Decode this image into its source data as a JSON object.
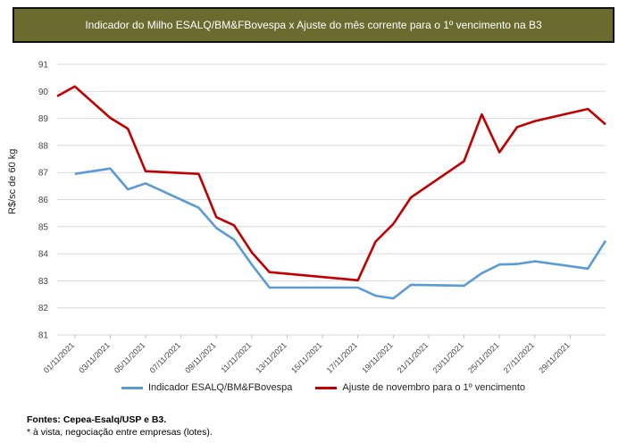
{
  "chart_data": {
    "type": "line",
    "title": "Indicador do Milho ESALQ/BM&FBovespa x Ajuste do mês corrente para o 1º vencimento na B3",
    "ylabel": "R$/sc de 60 kg",
    "ylim": [
      81,
      91
    ],
    "yticks": [
      "81",
      "82",
      "83",
      "84",
      "85",
      "86",
      "87",
      "88",
      "89",
      "90",
      "91"
    ],
    "x_tick_labels": [
      "01/11/2021",
      "03/11/2021",
      "05/11/2021",
      "07/11/2021",
      "09/11/2021",
      "11/11/2021",
      "13/11/2021",
      "15/11/2021",
      "17/11/2021",
      "19/11/2021",
      "21/11/2021",
      "23/11/2021",
      "25/11/2021",
      "27/11/2021",
      "29/11/2021"
    ],
    "x_range": [
      1,
      30
    ],
    "grid": true,
    "legend_position": "bottom",
    "series": [
      {
        "name": "Indicador ESALQ/BM&FBovespa",
        "color": "#5b9bd5",
        "points": [
          [
            1,
            86.95
          ],
          [
            3,
            87.15
          ],
          [
            4,
            86.38
          ],
          [
            5,
            86.6
          ],
          [
            8,
            85.7
          ],
          [
            9,
            84.95
          ],
          [
            10,
            84.52
          ],
          [
            11,
            83.6
          ],
          [
            12,
            82.75
          ],
          [
            17,
            82.75
          ],
          [
            18,
            82.45
          ],
          [
            19,
            82.35
          ],
          [
            20,
            82.85
          ],
          [
            23,
            82.82
          ],
          [
            24,
            83.28
          ],
          [
            25,
            83.6
          ],
          [
            26,
            83.62
          ],
          [
            27,
            83.72
          ],
          [
            30,
            83.45
          ],
          [
            31,
            84.48
          ]
        ]
      },
      {
        "name": "Ajuste de novembro para o 1º vencimento",
        "color": "#c00000",
        "points": [
          [
            0,
            89.82
          ],
          [
            1,
            90.18
          ],
          [
            3,
            89.02
          ],
          [
            4,
            88.62
          ],
          [
            5,
            87.05
          ],
          [
            8,
            86.95
          ],
          [
            9,
            85.35
          ],
          [
            10,
            85.05
          ],
          [
            11,
            84.05
          ],
          [
            12,
            83.32
          ],
          [
            17,
            83.02
          ],
          [
            18,
            84.45
          ],
          [
            19,
            85.1
          ],
          [
            20,
            86.08
          ],
          [
            23,
            87.42
          ],
          [
            24,
            89.15
          ],
          [
            25,
            87.75
          ],
          [
            26,
            88.68
          ],
          [
            27,
            88.9
          ],
          [
            30,
            89.35
          ],
          [
            31,
            88.78
          ]
        ]
      }
    ]
  },
  "legend": [
    {
      "label": "Indicador ESALQ/BM&FBovespa",
      "color": "#5b9bd5"
    },
    {
      "label": "Ajuste de novembro para o 1º vencimento",
      "color": "#c00000"
    }
  ],
  "footer": {
    "source": "Fontes: Cepea-Esalq/USP e B3.",
    "note": "* à vista, negociação entre empresas (lotes)."
  }
}
